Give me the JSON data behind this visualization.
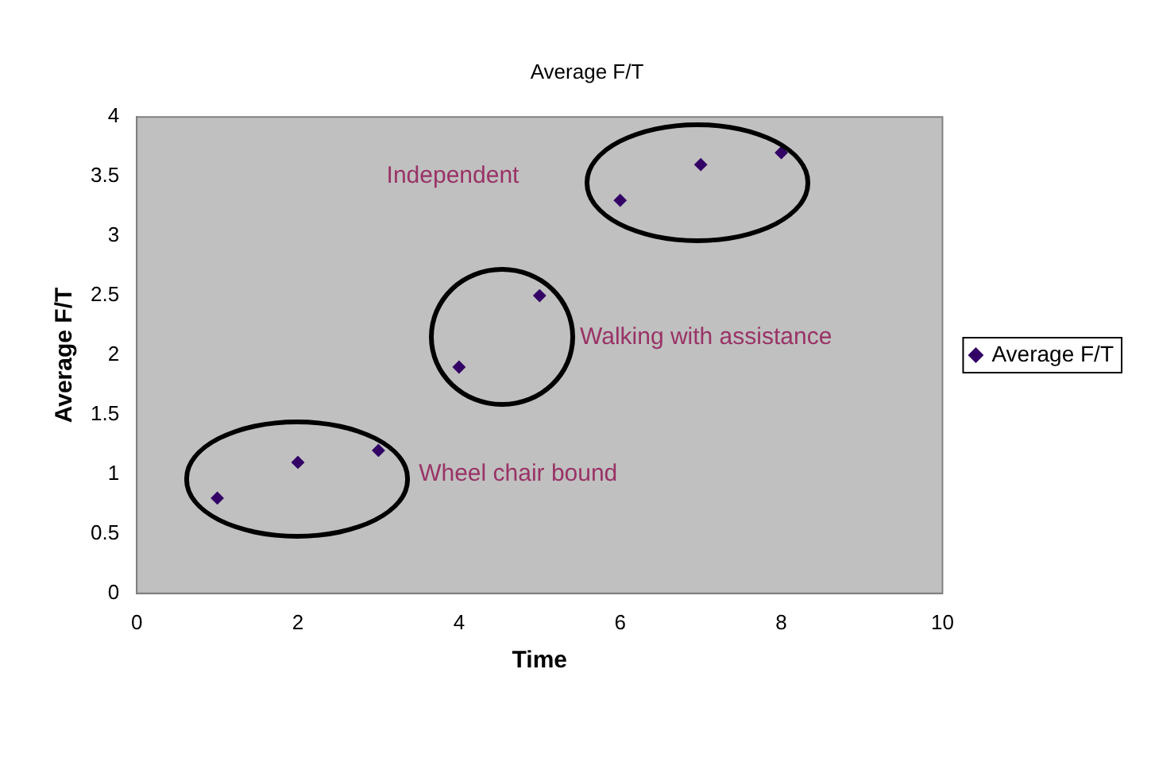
{
  "chart_data": {
    "type": "scatter",
    "title": "Average F/T",
    "xlabel": "Time",
    "ylabel": "Average F/T",
    "series": [
      {
        "name": "Average F/T",
        "color": "#330066",
        "x": [
          1,
          2,
          3,
          4,
          5,
          6,
          7,
          8
        ],
        "values": [
          0.8,
          1.1,
          1.2,
          1.9,
          2.5,
          3.3,
          3.6,
          3.7
        ]
      }
    ],
    "xlim": [
      0,
      10
    ],
    "xticks": [
      0,
      2,
      4,
      6,
      8,
      10
    ],
    "ylim": [
      0,
      4
    ],
    "yticks": [
      0,
      0.5,
      1,
      1.5,
      2,
      2.5,
      3,
      3.5,
      4
    ],
    "grid": false,
    "legend": "right",
    "marker": "diamond",
    "annotations": [
      "Independent",
      "Walking with assistance",
      "Wheel chair bound"
    ]
  }
}
